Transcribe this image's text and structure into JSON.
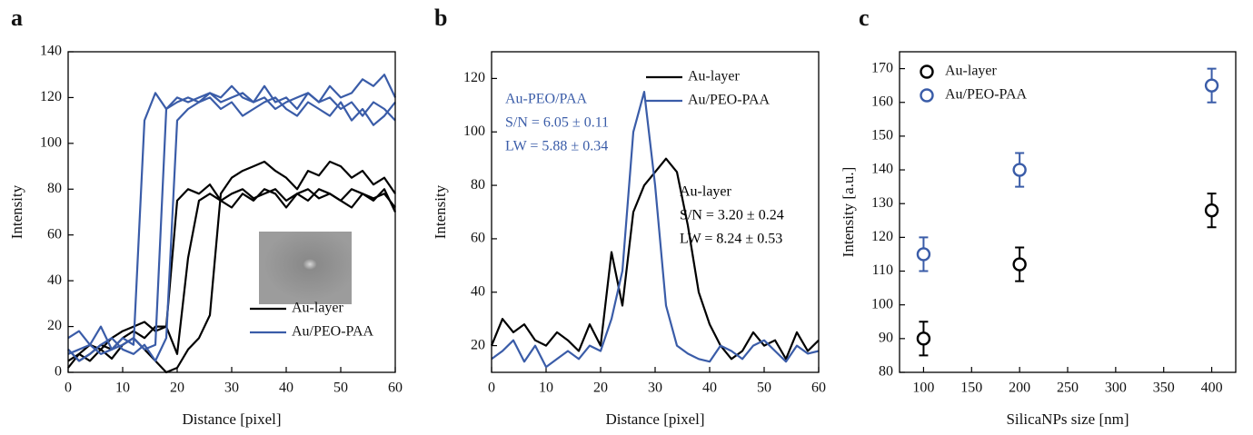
{
  "chart_data": [
    {
      "type": "line",
      "label": "a",
      "xlabel": "Distance [pixel]",
      "ylabel": "Intensity",
      "x": [
        0,
        2,
        4,
        6,
        8,
        10,
        12,
        14,
        16,
        18,
        20,
        22,
        24,
        26,
        28,
        30,
        32,
        34,
        36,
        38,
        40,
        42,
        44,
        46,
        48,
        50,
        52,
        54,
        56,
        58,
        60
      ],
      "xlim": [
        0,
        60
      ],
      "ylim": [
        0,
        140
      ],
      "xticks": [
        0,
        10,
        20,
        30,
        40,
        50,
        60
      ],
      "yticks": [
        0,
        20,
        40,
        60,
        80,
        100,
        120,
        140
      ],
      "legend": "lower right",
      "series": [
        {
          "name": "Au-layer",
          "color": "#000000",
          "traces": [
            [
              5,
              8,
              12,
              10,
              15,
              18,
              20,
              22,
              18,
              20,
              75,
              80,
              78,
              82,
              75,
              78,
              80,
              76,
              78,
              80,
              75,
              78,
              80,
              76,
              78,
              75,
              80,
              78,
              76,
              78,
              72
            ],
            [
              10,
              5,
              8,
              12,
              10,
              15,
              18,
              15,
              20,
              20,
              8,
              50,
              75,
              78,
              75,
              72,
              78,
              75,
              80,
              78,
              72,
              78,
              75,
              80,
              78,
              75,
              72,
              78,
              75,
              80,
              70
            ],
            [
              2,
              8,
              5,
              10,
              6,
              12,
              15,
              10,
              5,
              0,
              2,
              10,
              15,
              25,
              78,
              85,
              88,
              90,
              92,
              88,
              85,
              80,
              88,
              86,
              92,
              90,
              85,
              88,
              82,
              85,
              78
            ]
          ]
        },
        {
          "name": "Au/PEO-PAA",
          "color": "#3a5ca8",
          "traces": [
            [
              15,
              18,
              12,
              20,
              10,
              15,
              12,
              110,
              122,
              115,
              120,
              118,
              120,
              122,
              118,
              120,
              122,
              118,
              125,
              118,
              120,
              115,
              122,
              118,
              120,
              115,
              118,
              112,
              118,
              115,
              110
            ],
            [
              8,
              10,
              12,
              8,
              10,
              12,
              15,
              10,
              12,
              115,
              118,
              120,
              118,
              122,
              120,
              125,
              120,
              118,
              120,
              115,
              118,
              120,
              122,
              118,
              125,
              120,
              122,
              128,
              125,
              130,
              120
            ],
            [
              10,
              5,
              8,
              12,
              15,
              10,
              8,
              12,
              5,
              15,
              110,
              115,
              118,
              120,
              115,
              118,
              112,
              115,
              118,
              120,
              115,
              112,
              118,
              115,
              112,
              118,
              110,
              115,
              108,
              112,
              118
            ]
          ]
        }
      ]
    },
    {
      "type": "line",
      "label": "b",
      "xlabel": "Distance [pixel]",
      "ylabel": "Intensity",
      "x": [
        0,
        2,
        4,
        6,
        8,
        10,
        12,
        14,
        16,
        18,
        20,
        22,
        24,
        26,
        28,
        30,
        32,
        34,
        36,
        38,
        40,
        42,
        44,
        46,
        48,
        50,
        52,
        54,
        56,
        58,
        60
      ],
      "xlim": [
        0,
        60
      ],
      "ylim": [
        10,
        130
      ],
      "xticks": [
        0,
        10,
        20,
        30,
        40,
        50,
        60
      ],
      "yticks": [
        20,
        40,
        60,
        80,
        100,
        120
      ],
      "legend": "upper right",
      "series": [
        {
          "name": "Au-layer",
          "color": "#000000",
          "traces": [
            [
              20,
              30,
              25,
              28,
              22,
              20,
              25,
              22,
              18,
              28,
              20,
              55,
              35,
              70,
              80,
              85,
              90,
              85,
              65,
              40,
              28,
              20,
              15,
              18,
              25,
              20,
              22,
              15,
              25,
              18,
              22
            ]
          ]
        },
        {
          "name": "Au/PEO-PAA",
          "color": "#3a5ca8",
          "traces": [
            [
              15,
              18,
              22,
              14,
              20,
              12,
              15,
              18,
              15,
              20,
              18,
              30,
              48,
              100,
              115,
              80,
              35,
              20,
              17,
              15,
              14,
              20,
              18,
              15,
              20,
              22,
              18,
              14,
              20,
              17,
              18
            ]
          ]
        }
      ],
      "annotations": [
        {
          "color": "#3a5ca8",
          "lines": [
            "Au-PEO/PAA",
            "S/N = 6.05 ± 0.11",
            "LW = 5.88 ± 0.34"
          ]
        },
        {
          "color": "#000000",
          "lines": [
            "Au-layer",
            "S/N = 3.20 ± 0.24",
            "LW = 8.24 ± 0.53"
          ]
        }
      ]
    },
    {
      "type": "scatter",
      "label": "c",
      "xlabel": "SilicaNPs size [nm]",
      "ylabel": "Intensity [a.u.]",
      "x": [
        100,
        200,
        400
      ],
      "xlim": [
        75,
        425
      ],
      "ylim": [
        80,
        175
      ],
      "xticks": [
        100,
        150,
        200,
        250,
        300,
        350,
        400
      ],
      "yticks": [
        80,
        90,
        100,
        110,
        120,
        130,
        140,
        150,
        160,
        170
      ],
      "legend": "upper left",
      "series": [
        {
          "name": "Au-layer",
          "color": "#000000",
          "values": [
            90,
            112,
            128
          ],
          "errors": [
            5,
            5,
            5
          ]
        },
        {
          "name": "Au/PEO-PAA",
          "color": "#3a5ca8",
          "values": [
            115,
            140,
            165
          ],
          "errors": [
            5,
            5,
            5
          ]
        }
      ]
    }
  ]
}
